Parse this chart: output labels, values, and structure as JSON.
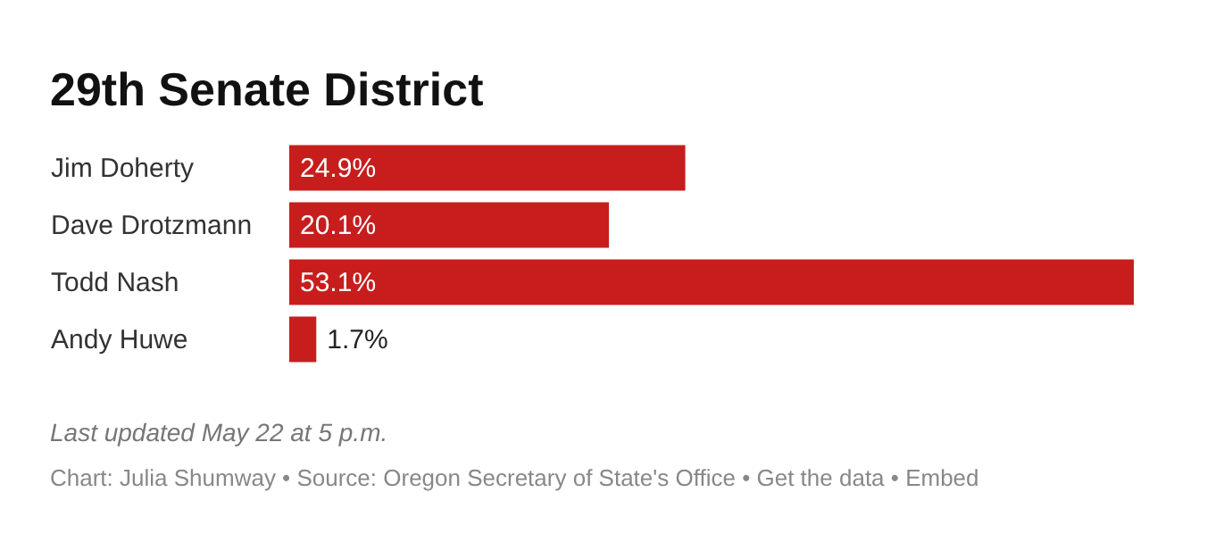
{
  "chart_data": {
    "type": "bar",
    "orientation": "horizontal",
    "title": "29th Senate District",
    "categories": [
      "Jim Doherty",
      "Dave Drotzmann",
      "Todd Nash",
      "Andy Huwe"
    ],
    "values": [
      24.9,
      20.1,
      53.1,
      1.7
    ],
    "value_labels": [
      "24.9%",
      "20.1%",
      "53.1%",
      "1.7%"
    ],
    "color": "#c71e1d",
    "annotations": [
      "Last updated May 22 at 5 p.m.",
      "Chart: Julia Shumway • Source: Oregon Secretary of State's Office • Get the data • Embed"
    ]
  }
}
